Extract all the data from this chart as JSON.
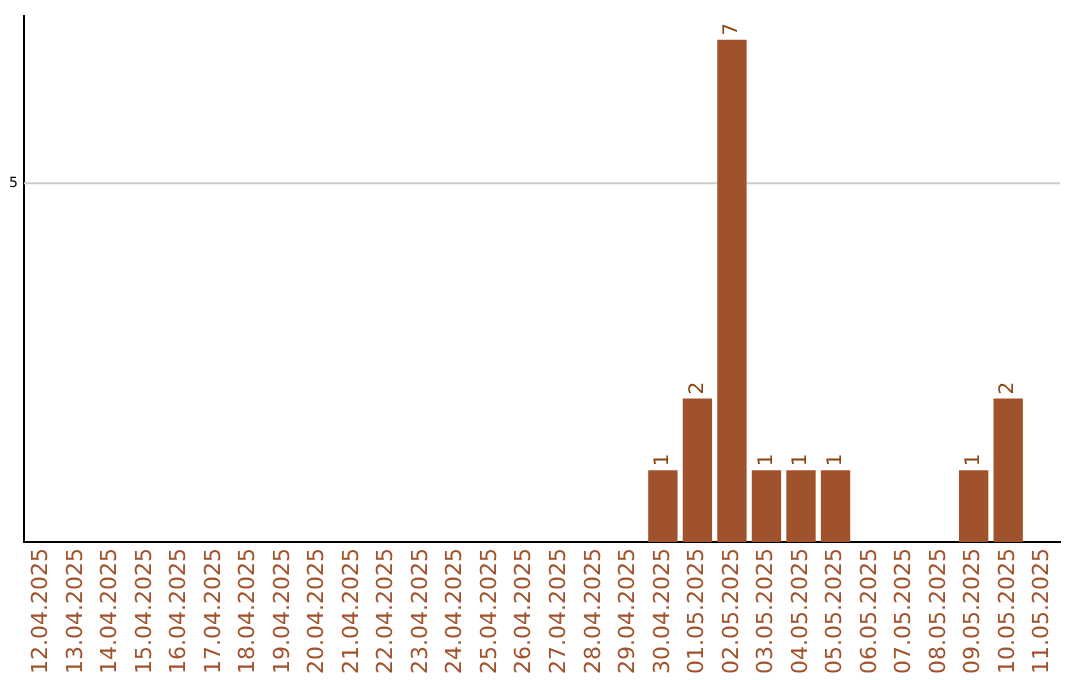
{
  "chart_data": {
    "type": "bar",
    "categories": [
      "12.04.2025",
      "13.04.2025",
      "14.04.2025",
      "15.04.2025",
      "16.04.2025",
      "17.04.2025",
      "18.04.2025",
      "19.04.2025",
      "20.04.2025",
      "21.04.2025",
      "22.04.2025",
      "23.04.2025",
      "24.04.2025",
      "25.04.2025",
      "26.04.2025",
      "27.04.2025",
      "28.04.2025",
      "29.04.2025",
      "30.04.2025",
      "01.05.2025",
      "02.05.2025",
      "03.05.2025",
      "04.05.2025",
      "05.05.2025",
      "06.05.2025",
      "07.05.2025",
      "08.05.2025",
      "09.05.2025",
      "10.05.2025",
      "11.05.2025"
    ],
    "values": [
      null,
      null,
      null,
      null,
      null,
      null,
      null,
      null,
      null,
      null,
      null,
      null,
      null,
      null,
      null,
      null,
      null,
      null,
      1,
      2,
      7,
      1,
      1,
      1,
      null,
      null,
      null,
      1,
      2,
      null
    ],
    "data_labels": true,
    "color": "#a0522d",
    "ylim": [
      0,
      7.33
    ],
    "ref_lines": [
      {
        "axis": "y",
        "value": 5,
        "label": "5",
        "color": "#cccccc"
      }
    ],
    "legend": false
  }
}
